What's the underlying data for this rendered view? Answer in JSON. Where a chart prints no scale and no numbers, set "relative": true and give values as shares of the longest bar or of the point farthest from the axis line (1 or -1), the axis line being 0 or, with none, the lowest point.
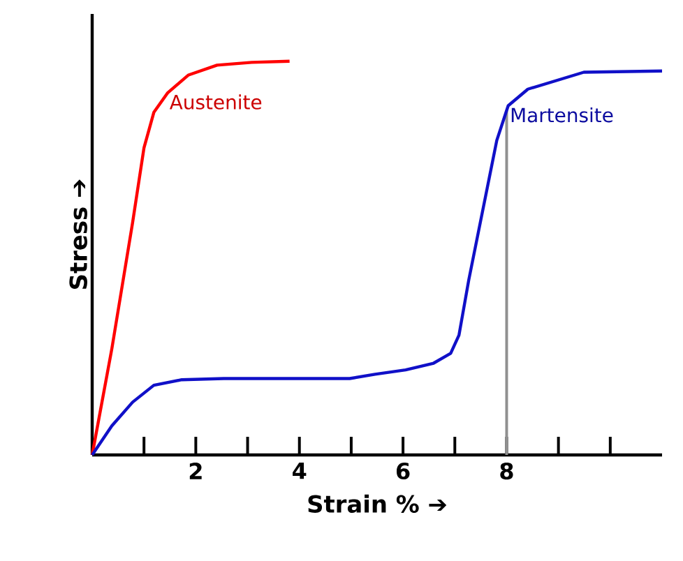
{
  "chart_data": {
    "type": "line",
    "relative": true,
    "xlabel": "Strain %  ➔",
    "ylabel": "Stress  ➔",
    "xlim": [
      0,
      11
    ],
    "xticks": [
      {
        "value": 1,
        "label": null
      },
      2,
      {
        "value": 3,
        "label": null
      },
      4,
      {
        "value": 5,
        "label": null
      },
      6,
      {
        "value": 7,
        "label": null
      },
      8,
      {
        "value": 9,
        "label": null
      },
      {
        "value": 10,
        "label": null
      }
    ],
    "grid": false,
    "legend": false,
    "marker": "none",
    "line_style": "solid",
    "ref_lines": [
      {
        "axis": "x",
        "value": 8,
        "color": "#909090"
      }
    ],
    "series": [
      {
        "name": "Austenite",
        "color": "#ff0000",
        "x": [
          0,
          0.38,
          0.78,
          1.0,
          1.19,
          1.46,
          1.86,
          2.41,
          3.08,
          3.81
        ],
        "values": [
          0,
          0.27,
          0.59,
          0.78,
          0.87,
          0.92,
          0.965,
          0.99,
          0.997,
          1.0
        ]
      },
      {
        "name": "Martensite",
        "color": "#1010c8",
        "x": [
          0,
          0.38,
          0.78,
          1.19,
          1.73,
          2.54,
          4.97,
          5.46,
          6.05,
          6.59,
          6.92,
          7.08,
          7.27,
          7.54,
          7.81,
          8.03,
          8.41,
          9.49,
          11
        ],
        "values": [
          0,
          0.074,
          0.134,
          0.177,
          0.191,
          0.194,
          0.194,
          0.205,
          0.216,
          0.233,
          0.258,
          0.304,
          0.445,
          0.622,
          0.799,
          0.887,
          0.929,
          0.972,
          0.975
        ]
      }
    ]
  }
}
